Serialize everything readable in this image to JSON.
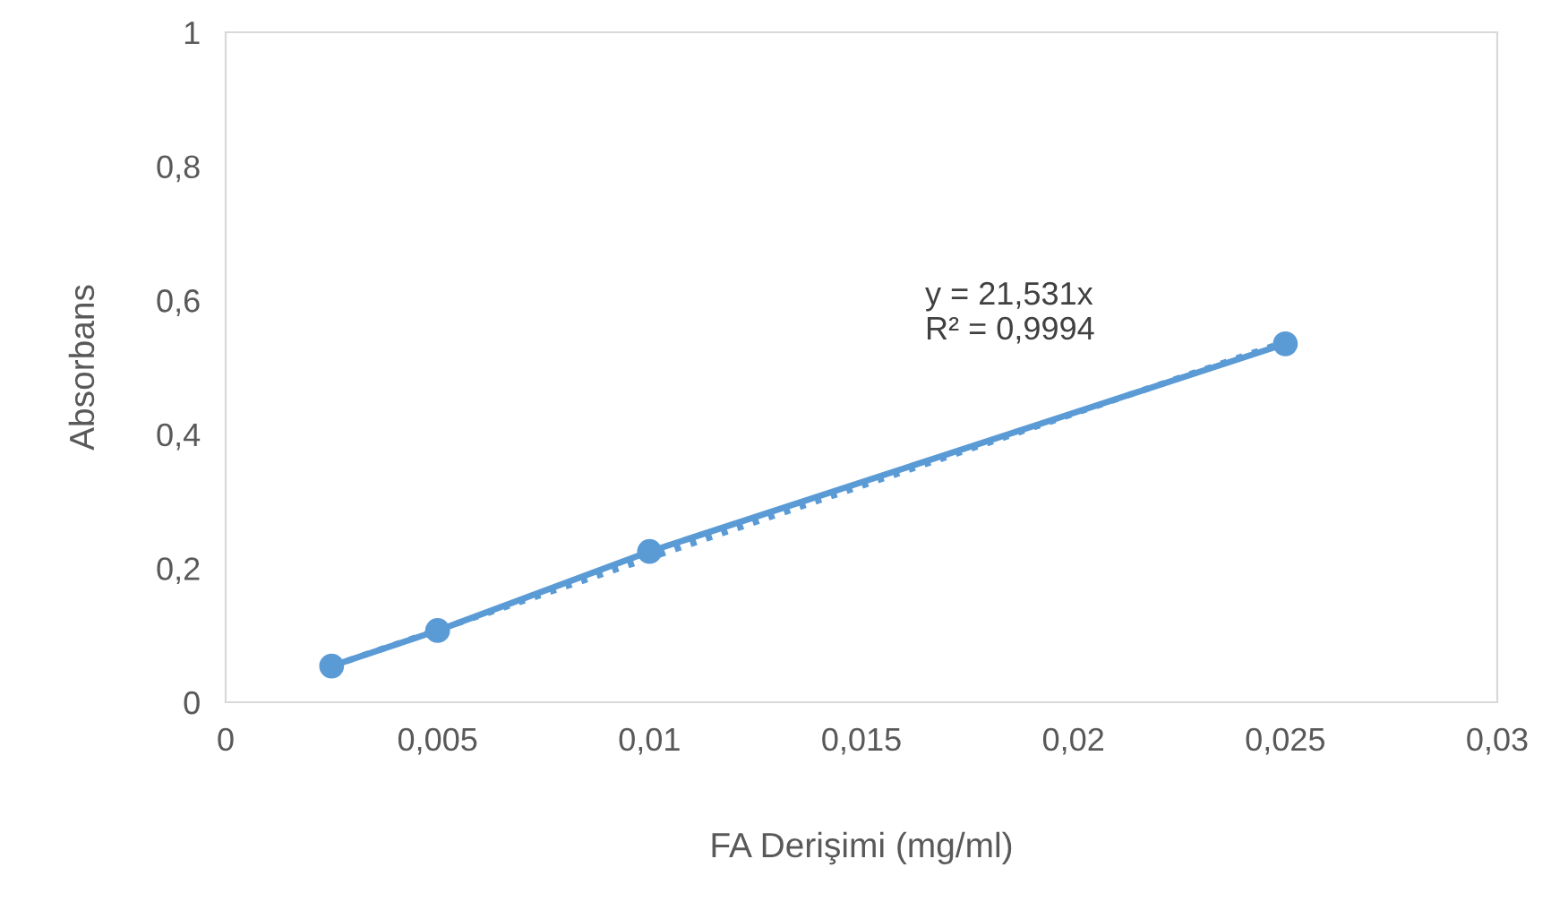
{
  "chart_data": {
    "type": "line",
    "xlabel": "FA Derişimi (mg/ml)",
    "ylabel": "Absorbans",
    "series": [
      {
        "color": "#5b9bd5",
        "x": [
          0.0025,
          0.005,
          0.01,
          0.025
        ],
        "values": [
          0.054,
          0.107,
          0.225,
          0.535
        ],
        "marker": "circle",
        "line_style": "solid"
      },
      {
        "color": "#5b9bd5",
        "x": [
          0.0025,
          0.025
        ],
        "values": [
          0.054,
          0.538
        ],
        "marker": "none",
        "line_style": "dotted"
      }
    ],
    "annotations": [
      "y = 21,531x\nR² = 0,9994"
    ],
    "xlim": [
      0,
      0.03
    ],
    "xticks": [
      0,
      {
        "value": 0.005,
        "label": "0,005"
      },
      {
        "value": 0.01,
        "label": "0,01"
      },
      {
        "value": 0.015,
        "label": "0,015"
      },
      {
        "value": 0.02,
        "label": "0,02"
      },
      {
        "value": 0.025,
        "label": "0,025"
      },
      {
        "value": 0.03,
        "label": "0,03"
      }
    ],
    "ylim": [
      0,
      1
    ],
    "yticks": [
      0,
      {
        "value": 0.2,
        "label": "0,2"
      },
      {
        "value": 0.4,
        "label": "0,4"
      },
      {
        "value": 0.6,
        "label": "0,6"
      },
      {
        "value": 0.8,
        "label": "0,8"
      },
      1
    ],
    "grid": false,
    "legend": false
  }
}
